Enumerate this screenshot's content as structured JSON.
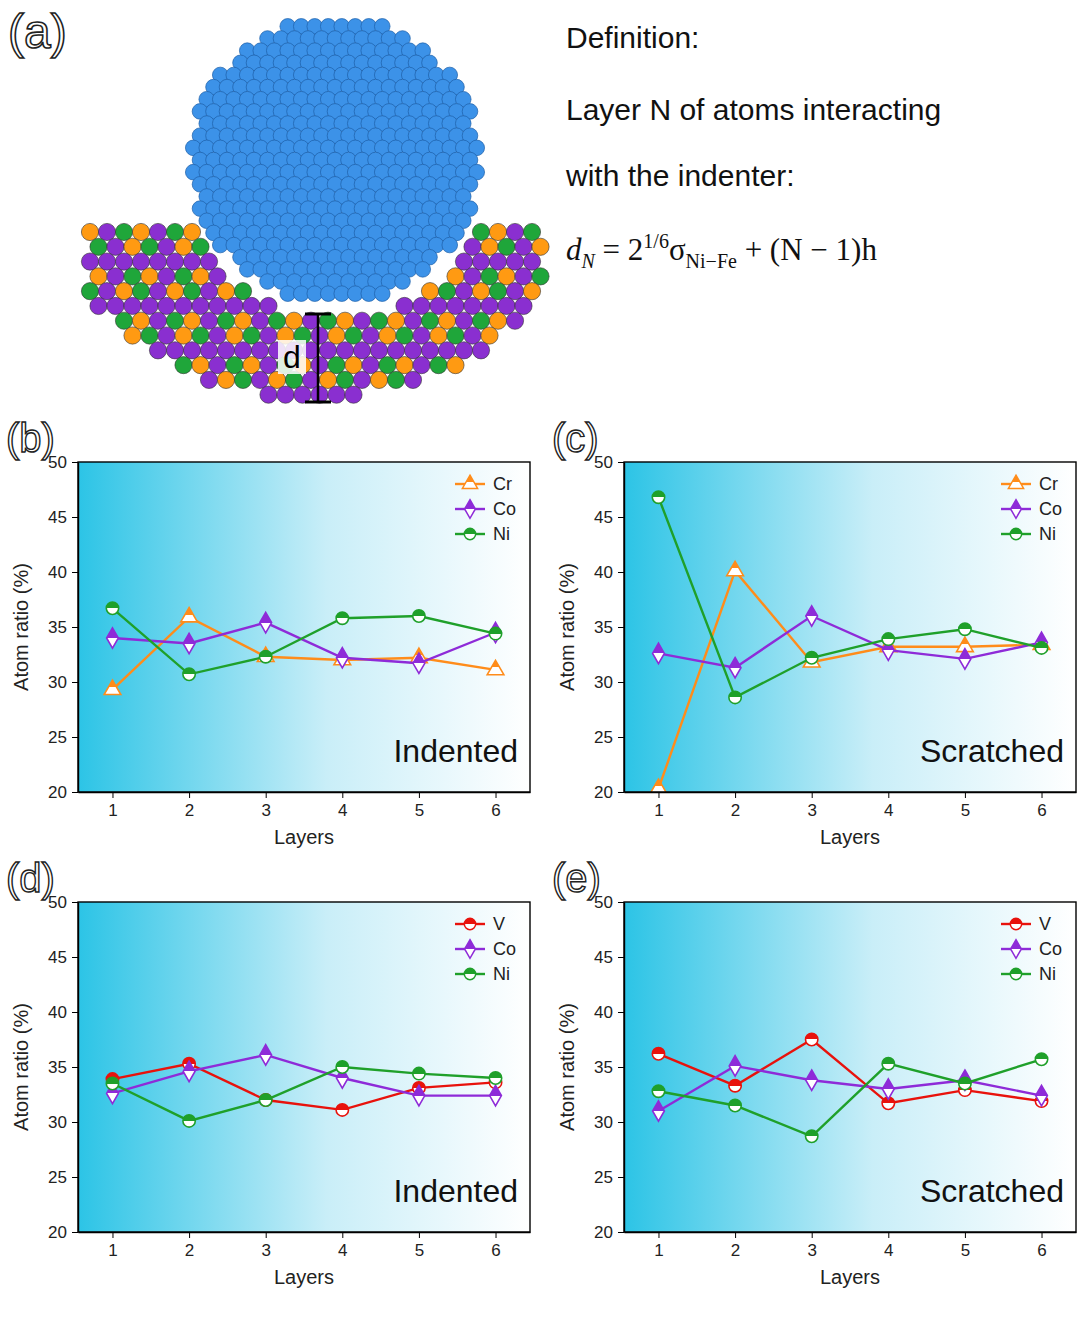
{
  "panel_a": {
    "label": "(a)",
    "d_label": "d",
    "definition": "Definition:",
    "lines": [
      "Layer N of atoms interacting",
      "with the indenter:"
    ],
    "formula": [
      {
        "text": "d",
        "style": "normal"
      },
      {
        "text": "N",
        "style": "sub"
      },
      {
        "text": " = 2",
        "style": "normal"
      },
      {
        "text": "1/6",
        "style": "sup"
      },
      {
        "text": "σ",
        "style": "normal"
      },
      {
        "text": "Ni−Fe",
        "style": "sub"
      },
      {
        "text": " + (N − 1)h",
        "style": "normal"
      }
    ]
  },
  "chart_data": [
    {
      "type": "line",
      "title": "(b)",
      "annotation": "Indented",
      "x_label": "Layers",
      "y_label": "Atom ratio (%)",
      "x": [
        1,
        2,
        3,
        4,
        5,
        6
      ],
      "xlim": [
        0.55,
        6.45
      ],
      "xticks": [
        1,
        2,
        3,
        4,
        5,
        6
      ],
      "ylim": [
        20,
        50
      ],
      "yticks": [
        20,
        25,
        30,
        35,
        40,
        45,
        50
      ],
      "grid": false,
      "legend": "upper right",
      "series": [
        {
          "name": "Cr",
          "color": "#ff8c1a",
          "marker": "triangle",
          "values": [
            29.3,
            35.9,
            32.3,
            32.0,
            32.2,
            31.1
          ]
        },
        {
          "name": "Co",
          "color": "#8e2bd8",
          "marker": "diamond",
          "values": [
            34.0,
            33.5,
            35.4,
            32.2,
            31.7,
            34.5
          ]
        },
        {
          "name": "Ni",
          "color": "#1fa02a",
          "marker": "circle",
          "values": [
            36.7,
            30.7,
            32.3,
            35.8,
            36.0,
            34.4
          ]
        }
      ]
    },
    {
      "type": "line",
      "title": "(c)",
      "annotation": "Scratched",
      "x_label": "Layers",
      "y_label": "Atom ratio (%)",
      "x": [
        1,
        2,
        3,
        4,
        5,
        6
      ],
      "xlim": [
        0.55,
        6.45
      ],
      "xticks": [
        1,
        2,
        3,
        4,
        5,
        6
      ],
      "ylim": [
        20,
        50
      ],
      "yticks": [
        20,
        25,
        30,
        35,
        40,
        45,
        50
      ],
      "grid": false,
      "legend": "upper right",
      "series": [
        {
          "name": "Cr",
          "color": "#ff8c1a",
          "marker": "triangle",
          "values": [
            20.3,
            40.1,
            31.8,
            33.2,
            33.2,
            33.4
          ]
        },
        {
          "name": "Co",
          "color": "#8e2bd8",
          "marker": "diamond",
          "values": [
            32.6,
            31.3,
            36.0,
            32.9,
            32.1,
            33.6
          ]
        },
        {
          "name": "Ni",
          "color": "#1fa02a",
          "marker": "circle",
          "values": [
            46.8,
            28.6,
            32.2,
            33.9,
            34.8,
            33.1
          ]
        }
      ]
    },
    {
      "type": "line",
      "title": "(d)",
      "annotation": "Indented",
      "x_label": "Layers",
      "y_label": "Atom ratio (%)",
      "x": [
        1,
        2,
        3,
        4,
        5,
        6
      ],
      "xlim": [
        0.55,
        6.45
      ],
      "xticks": [
        1,
        2,
        3,
        4,
        5,
        6
      ],
      "ylim": [
        20,
        50
      ],
      "yticks": [
        20,
        25,
        30,
        35,
        40,
        45,
        50
      ],
      "grid": false,
      "legend": "upper right",
      "series": [
        {
          "name": "V",
          "color": "#e8120c",
          "marker": "circle",
          "values": [
            33.9,
            35.3,
            32.0,
            31.1,
            33.1,
            33.6
          ]
        },
        {
          "name": "Co",
          "color": "#8e2bd8",
          "marker": "diamond",
          "values": [
            32.6,
            34.6,
            36.1,
            34.0,
            32.4,
            32.4
          ]
        },
        {
          "name": "Ni",
          "color": "#1fa02a",
          "marker": "circle",
          "values": [
            33.5,
            30.1,
            32.0,
            35.0,
            34.4,
            34.0
          ]
        }
      ]
    },
    {
      "type": "line",
      "title": "(e)",
      "annotation": "Scratched",
      "x_label": "Layers",
      "y_label": "Atom ratio (%)",
      "x": [
        1,
        2,
        3,
        4,
        5,
        6
      ],
      "xlim": [
        0.55,
        6.45
      ],
      "xticks": [
        1,
        2,
        3,
        4,
        5,
        6
      ],
      "ylim": [
        20,
        50
      ],
      "yticks": [
        20,
        25,
        30,
        35,
        40,
        45,
        50
      ],
      "grid": false,
      "legend": "upper right",
      "series": [
        {
          "name": "V",
          "color": "#e8120c",
          "marker": "circle",
          "values": [
            36.2,
            33.3,
            37.5,
            31.7,
            32.9,
            31.9
          ]
        },
        {
          "name": "Co",
          "color": "#8e2bd8",
          "marker": "diamond",
          "values": [
            31.0,
            35.1,
            33.8,
            33.0,
            33.8,
            32.4
          ]
        },
        {
          "name": "Ni",
          "color": "#1fa02a",
          "marker": "circle",
          "values": [
            32.8,
            31.5,
            28.7,
            35.3,
            33.5,
            35.7
          ]
        }
      ]
    }
  ]
}
